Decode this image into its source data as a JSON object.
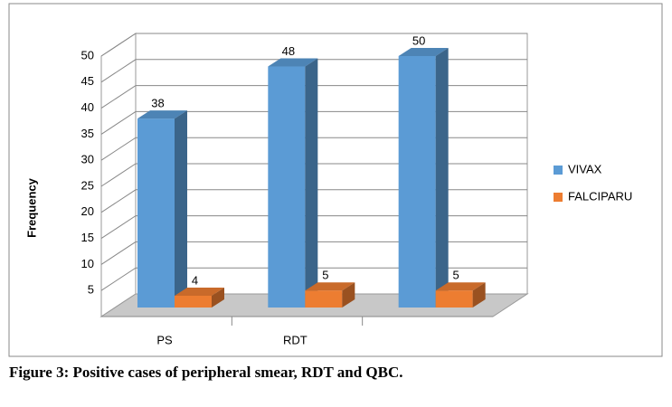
{
  "chart_data": {
    "type": "bar3d",
    "caption": "Figure 3: Positive cases of peripheral smear, RDT and QBC.",
    "y_label": "Frequency",
    "categories": [
      "PS",
      "RDT",
      null
    ],
    "series": [
      {
        "name": "VIVAX",
        "color": "#5b9bd5",
        "values": [
          38,
          48,
          50
        ]
      },
      {
        "name": "FALCIPARU",
        "color": "#ed7d31",
        "values": [
          4,
          5,
          5
        ]
      }
    ],
    "ylim": [
      0,
      50
    ],
    "yticks": [
      5,
      10,
      15,
      20,
      25,
      30,
      35,
      40,
      45,
      50
    ],
    "grid": true,
    "legend": "right"
  }
}
